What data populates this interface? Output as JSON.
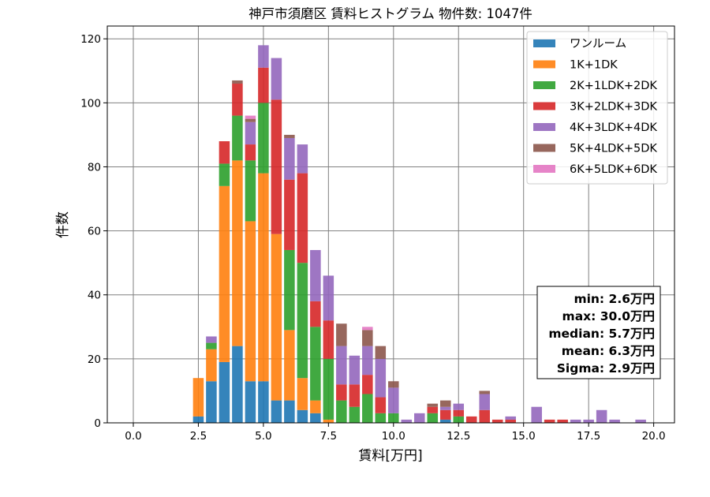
{
  "chart_data": {
    "type": "bar",
    "stacked": true,
    "title": "神戸市須磨区 賃料ヒストグラム  物件数: 1047件",
    "xlabel": "賃料[万円]",
    "ylabel": "件数",
    "xlim": [
      -1.0,
      20.8
    ],
    "ylim": [
      0,
      124
    ],
    "xticks": [
      0.0,
      2.5,
      5.0,
      7.5,
      10.0,
      12.5,
      15.0,
      17.5,
      20.0
    ],
    "xtick_labels": [
      "0.0",
      "2.5",
      "5.0",
      "7.5",
      "10.0",
      "12.5",
      "15.0",
      "17.5",
      "20.0"
    ],
    "yticks": [
      0,
      20,
      40,
      60,
      80,
      100,
      120
    ],
    "ytick_labels": [
      "0",
      "20",
      "40",
      "60",
      "80",
      "100",
      "120"
    ],
    "grid": true,
    "legend_position": "top-right",
    "bin_width": 0.5,
    "bin_centers": [
      2.5,
      3.0,
      3.5,
      4.0,
      4.5,
      5.0,
      5.5,
      6.0,
      6.5,
      7.0,
      7.5,
      8.0,
      8.5,
      9.0,
      9.5,
      10.0,
      10.5,
      11.0,
      11.5,
      12.0,
      12.5,
      13.0,
      13.5,
      14.0,
      14.5,
      15.0,
      15.5,
      16.0,
      16.5,
      17.0,
      17.5,
      18.0,
      18.5,
      19.0,
      19.5
    ],
    "series": [
      {
        "name": "ワンルーム",
        "color": "#1f77b4",
        "values": [
          2,
          13,
          19,
          24,
          13,
          13,
          7,
          7,
          4,
          3,
          0,
          0,
          0,
          0,
          0,
          0,
          0,
          0,
          0,
          1,
          0,
          0,
          0,
          0,
          0,
          0,
          0,
          0,
          0,
          0,
          0,
          0,
          0,
          0,
          0
        ]
      },
      {
        "name": "1K+1DK",
        "color": "#ff7f0e",
        "values": [
          12,
          10,
          55,
          58,
          50,
          65,
          52,
          22,
          10,
          4,
          1,
          0,
          0,
          0,
          0,
          0,
          0,
          0,
          0,
          0,
          0,
          0,
          0,
          0,
          0,
          0,
          0,
          0,
          0,
          0,
          0,
          0,
          0,
          0,
          0
        ]
      },
      {
        "name": "2K+1LDK+2DK",
        "color": "#2ca02c",
        "values": [
          0,
          2,
          7,
          14,
          19,
          22,
          0,
          25,
          36,
          23,
          19,
          7,
          5,
          9,
          3,
          3,
          0,
          0,
          3,
          0,
          2,
          0,
          0,
          0,
          0,
          0,
          0,
          0,
          0,
          0,
          0,
          0,
          0,
          0,
          0
        ]
      },
      {
        "name": "3K+2LDK+3DK",
        "color": "#d62728",
        "values": [
          0,
          0,
          7,
          10,
          5,
          11,
          42,
          22,
          28,
          8,
          12,
          5,
          7,
          6,
          5,
          0,
          0,
          0,
          2,
          3,
          2,
          2,
          4,
          1,
          1,
          0,
          0,
          1,
          1,
          0,
          0,
          0,
          0,
          0,
          0
        ]
      },
      {
        "name": "4K+3LDK+4DK",
        "color": "#9467bd",
        "values": [
          0,
          2,
          0,
          0,
          7,
          7,
          13,
          13,
          9,
          16,
          14,
          12,
          9,
          9,
          12,
          8,
          1,
          3,
          0,
          1,
          2,
          0,
          5,
          0,
          1,
          0,
          5,
          0,
          0,
          1,
          1,
          4,
          1,
          0,
          1
        ]
      },
      {
        "name": "5K+4LDK+5DK",
        "color": "#8c564b",
        "values": [
          0,
          0,
          0,
          1,
          1,
          0,
          0,
          1,
          0,
          0,
          0,
          7,
          0,
          5,
          4,
          2,
          0,
          0,
          1,
          2,
          0,
          0,
          1,
          0,
          0,
          0,
          0,
          0,
          0,
          0,
          0,
          0,
          0,
          0,
          0
        ]
      },
      {
        "name": "6K+5LDK+6DK",
        "color": "#e377c2",
        "values": [
          0,
          0,
          0,
          0,
          1,
          0,
          0,
          0,
          0,
          0,
          0,
          0,
          0,
          1,
          0,
          0,
          0,
          0,
          0,
          0,
          0,
          0,
          0,
          0,
          0,
          0,
          0,
          0,
          0,
          0,
          0,
          0,
          0,
          0,
          0
        ]
      }
    ],
    "stats": [
      "min: 2.6万円",
      "max: 30.0万円",
      "median: 5.7万円",
      "mean: 6.3万円",
      "Sigma: 2.9万円"
    ]
  }
}
